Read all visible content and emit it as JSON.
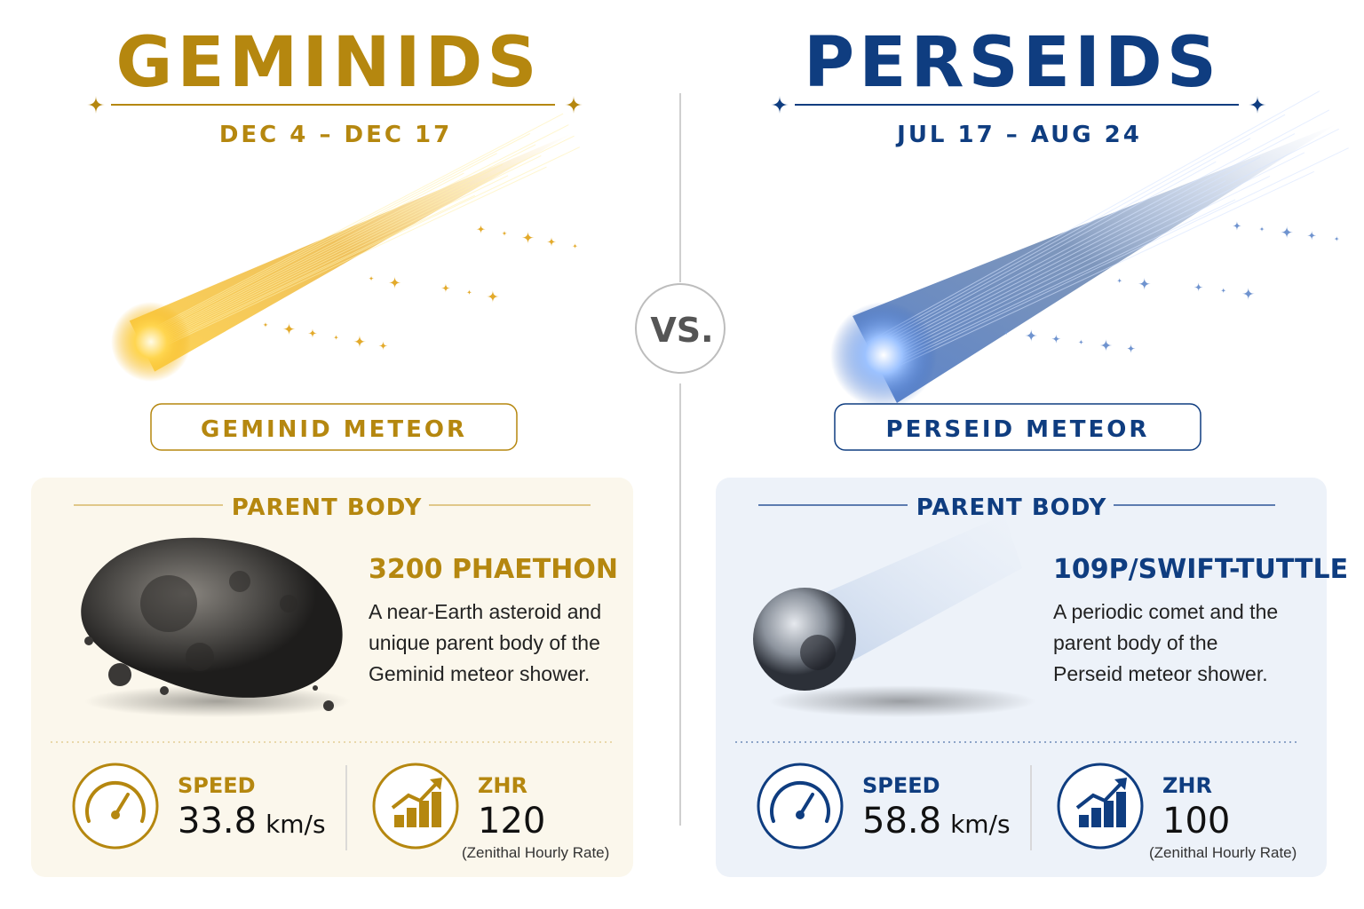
{
  "vs": "VS.",
  "showers": [
    {
      "name": "GEMINIDS",
      "dates": "DEC 4 – DEC 17",
      "meteor_label": "GEMINID METEOR",
      "parent_heading": "PARENT BODY",
      "parent_name": "3200 PHAETHON",
      "parent_description": [
        "A near-Earth asteroid and",
        "unique parent body of the",
        "Geminid meteor shower."
      ],
      "speed_label": "SPEED",
      "speed_value": 33.8,
      "speed_unit": "km/s",
      "zhr_label": "ZHR",
      "zhr_value": 120,
      "zhr_note": "(Zenithal Hourly Rate)"
    },
    {
      "name": "PERSEIDS",
      "dates": "JUL 17 – AUG 24",
      "meteor_label": "PERSEID METEOR",
      "parent_heading": "PARENT BODY",
      "parent_name": "109P/SWIFT-TUTTLE",
      "parent_description": [
        "A periodic comet and the",
        "parent body of the",
        "Perseid meteor shower."
      ],
      "speed_label": "SPEED",
      "speed_value": 58.8,
      "speed_unit": "km/s",
      "zhr_label": "ZHR",
      "zhr_value": 100,
      "zhr_note": "(Zenithal Hourly Rate)"
    }
  ]
}
